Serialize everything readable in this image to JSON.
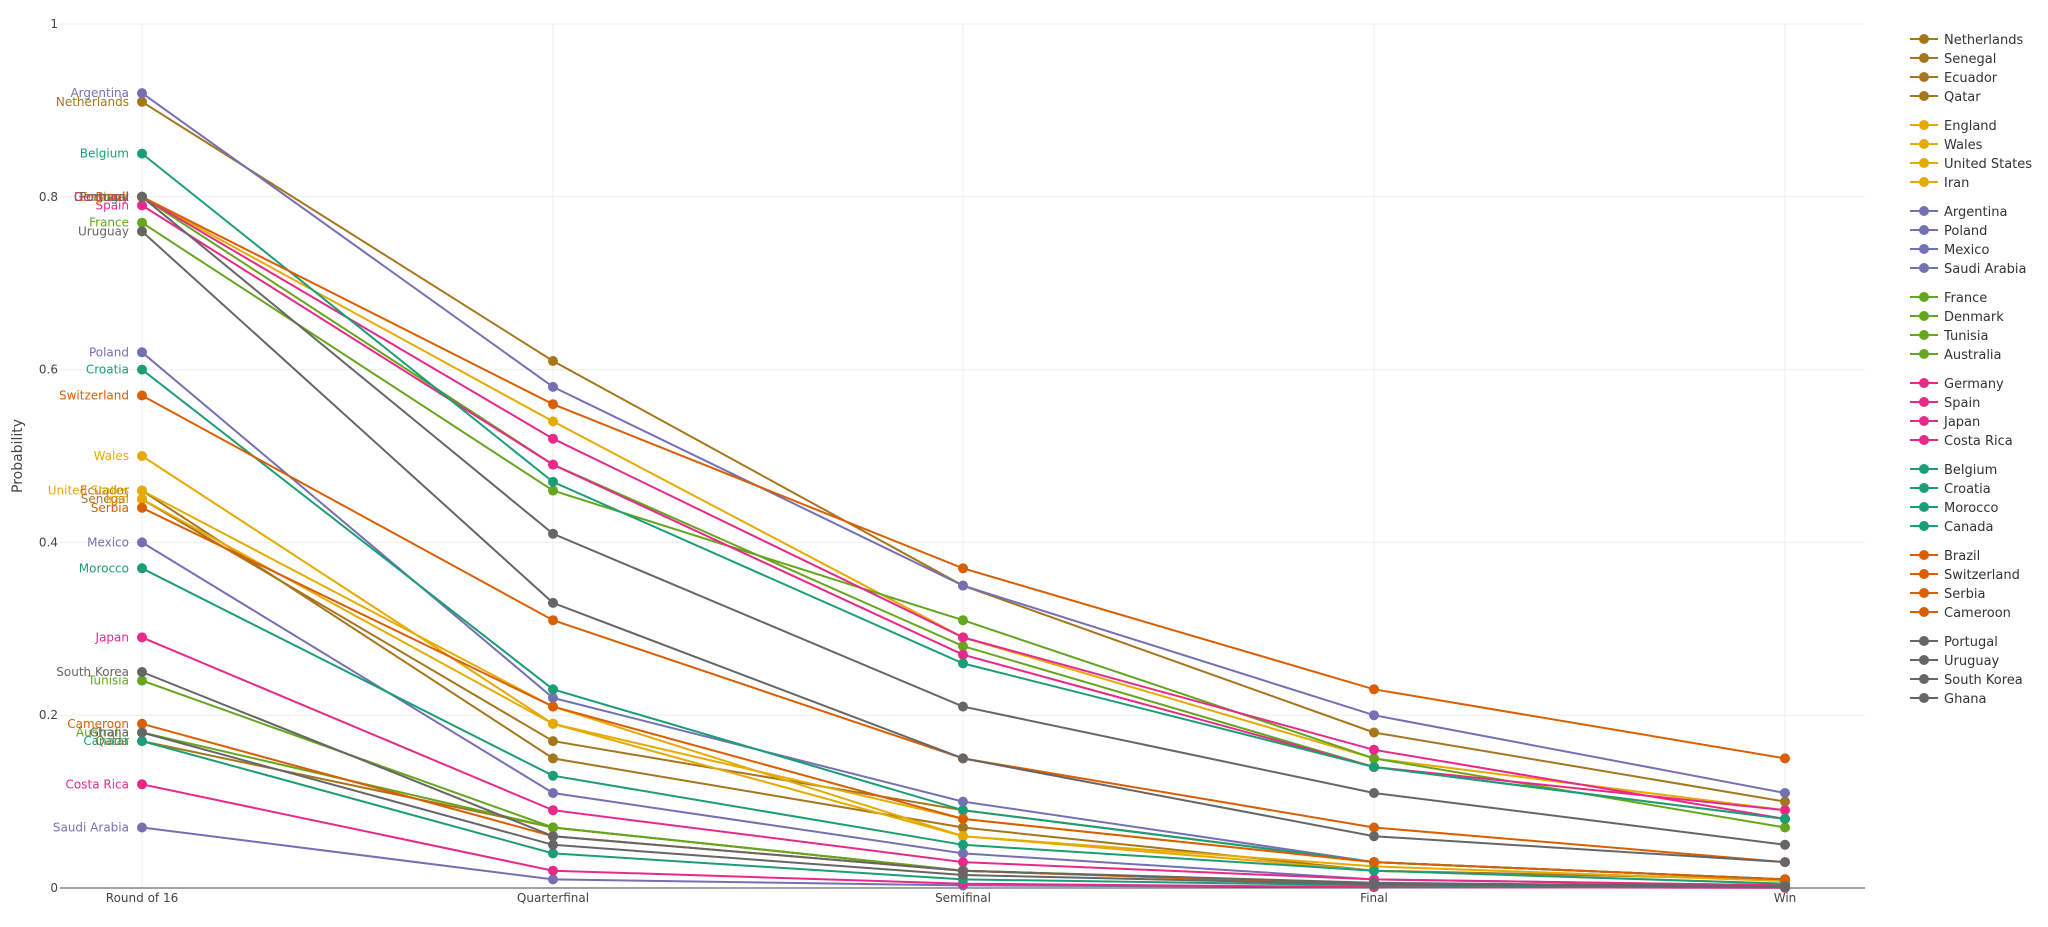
{
  "chart_data": {
    "type": "line",
    "title": "",
    "xlabel": "",
    "ylabel": "Probability",
    "categories": [
      "Round of 16",
      "Quarterfinal",
      "Semifinal",
      "Final",
      "Win"
    ],
    "ylim": [
      0,
      1
    ],
    "yticks": [
      0,
      0.2,
      0.4,
      0.6,
      0.8,
      1
    ],
    "ytick_labels": [
      "0",
      "0.2",
      "0.4",
      "0.6",
      "0.8",
      "1"
    ],
    "grid": true,
    "legend_position": "right",
    "groups": [
      {
        "color": "#a6761d",
        "series": [
          {
            "name": "Netherlands",
            "values": [
              0.91,
              0.61,
              0.35,
              0.18,
              0.1
            ]
          },
          {
            "name": "Senegal",
            "values": [
              0.45,
              0.17,
              0.09,
              0.03,
              0.01
            ]
          },
          {
            "name": "Ecuador",
            "values": [
              0.46,
              0.15,
              0.07,
              0.02,
              0.01
            ]
          },
          {
            "name": "Qatar",
            "values": [
              0.17,
              0.07,
              0.02,
              0.005,
              0.001
            ]
          }
        ]
      },
      {
        "color": "#e6ab02",
        "series": [
          {
            "name": "England",
            "values": [
              0.8,
              0.54,
              0.29,
              0.15,
              0.09
            ]
          },
          {
            "name": "Wales",
            "values": [
              0.5,
              0.19,
              0.08,
              0.03,
              0.01
            ]
          },
          {
            "name": "United States",
            "values": [
              0.46,
              0.21,
              0.06,
              0.02,
              0.005
            ]
          },
          {
            "name": "Iran",
            "values": [
              0.45,
              0.19,
              0.06,
              0.025,
              0.008
            ]
          }
        ]
      },
      {
        "color": "#7570b3",
        "series": [
          {
            "name": "Argentina",
            "values": [
              0.92,
              0.58,
              0.35,
              0.2,
              0.11
            ]
          },
          {
            "name": "Poland",
            "values": [
              0.62,
              0.22,
              0.1,
              0.03,
              0.01
            ]
          },
          {
            "name": "Mexico",
            "values": [
              0.4,
              0.11,
              0.04,
              0.01,
              0.003
            ]
          },
          {
            "name": "Saudi Arabia",
            "values": [
              0.07,
              0.01,
              0.003,
              0.001,
              0.0002
            ]
          }
        ]
      },
      {
        "color": "#66a61e",
        "series": [
          {
            "name": "France",
            "values": [
              0.77,
              0.46,
              0.31,
              0.15,
              0.07
            ]
          },
          {
            "name": "Denmark",
            "values": [
              0.8,
              0.49,
              0.28,
              0.14,
              0.08
            ]
          },
          {
            "name": "Tunisia",
            "values": [
              0.24,
              0.07,
              0.02,
              0.005,
              0.002
            ]
          },
          {
            "name": "Australia",
            "values": [
              0.18,
              0.07,
              0.02,
              0.004,
              0.001
            ]
          }
        ]
      },
      {
        "color": "#e7298a",
        "series": [
          {
            "name": "Germany",
            "values": [
              0.8,
              0.52,
              0.29,
              0.16,
              0.08
            ]
          },
          {
            "name": "Spain",
            "values": [
              0.79,
              0.49,
              0.27,
              0.14,
              0.09
            ]
          },
          {
            "name": "Japan",
            "values": [
              0.29,
              0.09,
              0.03,
              0.01,
              0.003
            ]
          },
          {
            "name": "Costa Rica",
            "values": [
              0.12,
              0.02,
              0.005,
              0.001,
              0.0003
            ]
          }
        ]
      },
      {
        "color": "#1b9e77",
        "series": [
          {
            "name": "Belgium",
            "values": [
              0.85,
              0.47,
              0.26,
              0.14,
              0.08
            ]
          },
          {
            "name": "Croatia",
            "values": [
              0.6,
              0.23,
              0.09,
              0.03,
              0.01
            ]
          },
          {
            "name": "Morocco",
            "values": [
              0.37,
              0.13,
              0.05,
              0.02,
              0.005
            ]
          },
          {
            "name": "Canada",
            "values": [
              0.17,
              0.04,
              0.01,
              0.003,
              0.001
            ]
          }
        ]
      },
      {
        "color": "#d95f02",
        "series": [
          {
            "name": "Brazil",
            "values": [
              0.8,
              0.56,
              0.37,
              0.23,
              0.15
            ]
          },
          {
            "name": "Switzerland",
            "values": [
              0.57,
              0.31,
              0.15,
              0.07,
              0.03
            ]
          },
          {
            "name": "Serbia",
            "values": [
              0.44,
              0.21,
              0.08,
              0.03,
              0.01
            ]
          },
          {
            "name": "Cameroon",
            "values": [
              0.19,
              0.06,
              0.02,
              0.004,
              0.001
            ]
          }
        ]
      },
      {
        "color": "#666666",
        "series": [
          {
            "name": "Portugal",
            "values": [
              0.8,
              0.41,
              0.21,
              0.11,
              0.05
            ]
          },
          {
            "name": "Uruguay",
            "values": [
              0.76,
              0.33,
              0.15,
              0.06,
              0.03
            ]
          },
          {
            "name": "South Korea",
            "values": [
              0.25,
              0.06,
              0.02,
              0.006,
              0.002
            ]
          },
          {
            "name": "Ghana",
            "values": [
              0.18,
              0.05,
              0.015,
              0.004,
              0.001
            ]
          }
        ]
      }
    ]
  }
}
